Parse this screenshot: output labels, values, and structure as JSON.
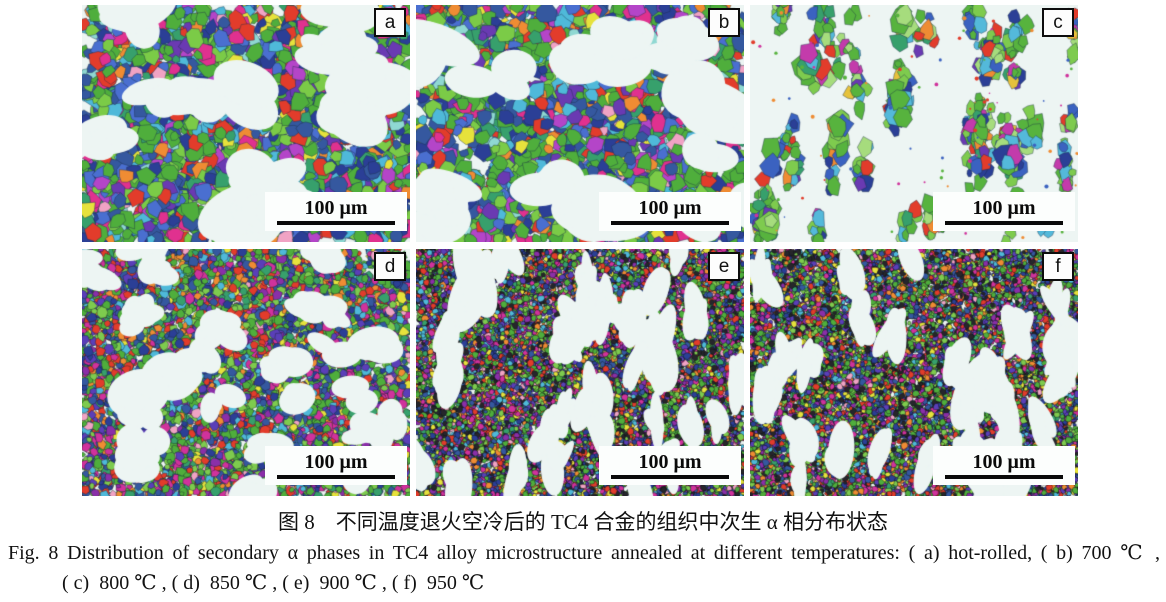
{
  "figure": {
    "panels": [
      {
        "label": "a",
        "scale_label": "100 μm",
        "style": "coarse",
        "seed": 11
      },
      {
        "label": "b",
        "scale_label": "100 μm",
        "style": "coarse",
        "seed": 87
      },
      {
        "label": "c",
        "scale_label": "100 μm",
        "style": "sparse",
        "seed": 37
      },
      {
        "label": "d",
        "scale_label": "100 μm",
        "style": "fine",
        "seed": 41
      },
      {
        "label": "e",
        "scale_label": "100 μm",
        "style": "veryfine",
        "seed": 53
      },
      {
        "label": "f",
        "scale_label": "100 μm",
        "style": "veryfine",
        "seed": 67
      }
    ]
  },
  "caption": {
    "cn": "图 8　不同温度退火空冷后的 TC4 合金的组织中次生 α 相分布状态",
    "en_line1": "Fig. 8  Distribution of secondary α phases in TC4 alloy microstructure annealed at different temperatures: ( a)  hot-rolled, ( b)  700 ℃ ,",
    "en_line2": "( c)  800 ℃ , ( d)  850 ℃ , ( e)  900 ℃ , ( f)  950 ℃"
  },
  "style_hints": {
    "page_background": "#ffffff",
    "micro_background": "#edf5f3",
    "scale_bar_color": "#0a0a0a",
    "label_border_color": "#0d0d0d",
    "palettes": {
      "coarse": [
        [
          "#4fae3c",
          22
        ],
        [
          "#7bcb47",
          10
        ],
        [
          "#35589f",
          13
        ],
        [
          "#2b3f96",
          9
        ],
        [
          "#4a6fd0",
          8
        ],
        [
          "#4fb9d9",
          7
        ],
        [
          "#8fd8d2",
          3
        ],
        [
          "#e23c2b",
          7
        ],
        [
          "#e0318f",
          6
        ],
        [
          "#b445c8",
          3
        ],
        [
          "#6a3ab2",
          4
        ],
        [
          "#e6e23c",
          3
        ],
        [
          "#ef8c33",
          3
        ],
        [
          "#f0a3c4",
          2
        ],
        [
          "#37a06c",
          4
        ]
      ],
      "sparse": [
        [
          "#57b33e",
          28
        ],
        [
          "#7ecb4e",
          16
        ],
        [
          "#a6dc7d",
          7
        ],
        [
          "#3b62c0",
          8
        ],
        [
          "#2b3f96",
          4
        ],
        [
          "#54b9da",
          9
        ],
        [
          "#e23c2b",
          5
        ],
        [
          "#c33bab",
          5
        ],
        [
          "#ef8c33",
          4
        ],
        [
          "#6a3ab2",
          4
        ],
        [
          "#37a06c",
          5
        ],
        [
          "#e6c23c",
          3
        ]
      ],
      "fine": [
        [
          "#4fae3c",
          19
        ],
        [
          "#7ecb4e",
          10
        ],
        [
          "#35589f",
          10
        ],
        [
          "#5a3fb8",
          7
        ],
        [
          "#8a2fa8",
          5
        ],
        [
          "#d0329c",
          8
        ],
        [
          "#e23c2b",
          8
        ],
        [
          "#ef8c33",
          5
        ],
        [
          "#4fb9d9",
          5
        ],
        [
          "#e6e23c",
          3
        ],
        [
          "#37a06c",
          5
        ],
        [
          "#2b3f96",
          6
        ],
        [
          "#f0a3c4",
          2
        ]
      ],
      "veryfine": [
        [
          "#4fae3c",
          17
        ],
        [
          "#7ecb4e",
          8
        ],
        [
          "#35589f",
          8
        ],
        [
          "#5a3fb8",
          7
        ],
        [
          "#8a2fa8",
          6
        ],
        [
          "#d0329c",
          8
        ],
        [
          "#e23c2b",
          8
        ],
        [
          "#ef8c33",
          5
        ],
        [
          "#4fb9d9",
          4
        ],
        [
          "#e6e23c",
          4
        ],
        [
          "#2b3f96",
          6
        ],
        [
          "#26262b",
          12
        ],
        [
          "#f0a3c4",
          2
        ],
        [
          "#37a06c",
          3
        ]
      ],
      "specks": [
        "#e23c2b",
        "#d0329c",
        "#57b33e",
        "#3b62c0",
        "#ef8c33"
      ]
    }
  }
}
